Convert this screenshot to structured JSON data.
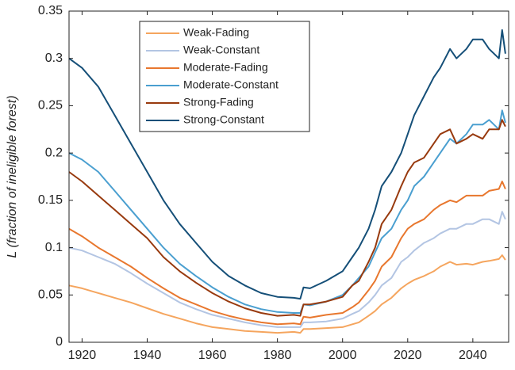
{
  "chart_data": {
    "type": "line",
    "ylabel": "L (fraction of ineligible forest)",
    "xlim": [
      1916,
      2051
    ],
    "xticks": [
      1920,
      1940,
      1960,
      1980,
      2000,
      2020,
      2040
    ],
    "ylim": [
      0,
      0.35
    ],
    "yticks": [
      0,
      0.05,
      0.1,
      0.15,
      0.2,
      0.25,
      0.3,
      0.35
    ],
    "grid": false,
    "legend": "upper-left",
    "x": [
      1916,
      1920,
      1925,
      1930,
      1935,
      1940,
      1945,
      1950,
      1955,
      1960,
      1965,
      1970,
      1975,
      1980,
      1985,
      1987,
      1988,
      1990,
      1995,
      2000,
      2003,
      2005,
      2008,
      2010,
      2012,
      2015,
      2018,
      2020,
      2022,
      2025,
      2028,
      2030,
      2033,
      2035,
      2038,
      2040,
      2043,
      2045,
      2048,
      2049,
      2050
    ],
    "series": [
      {
        "name": "Weak-Fading",
        "color": "#f5a55e",
        "values": [
          0.06,
          0.057,
          0.052,
          0.047,
          0.042,
          0.036,
          0.03,
          0.025,
          0.02,
          0.016,
          0.014,
          0.012,
          0.011,
          0.01,
          0.011,
          0.01,
          0.014,
          0.014,
          0.015,
          0.016,
          0.019,
          0.021,
          0.028,
          0.033,
          0.04,
          0.047,
          0.057,
          0.062,
          0.066,
          0.07,
          0.075,
          0.08,
          0.085,
          0.082,
          0.083,
          0.082,
          0.085,
          0.086,
          0.088,
          0.092,
          0.087
        ]
      },
      {
        "name": "Weak-Constant",
        "color": "#b3c5e3",
        "values": [
          0.1,
          0.097,
          0.09,
          0.083,
          0.073,
          0.062,
          0.052,
          0.042,
          0.035,
          0.029,
          0.025,
          0.021,
          0.018,
          0.016,
          0.016,
          0.016,
          0.021,
          0.021,
          0.022,
          0.025,
          0.03,
          0.033,
          0.042,
          0.05,
          0.06,
          0.068,
          0.085,
          0.09,
          0.097,
          0.105,
          0.11,
          0.115,
          0.12,
          0.12,
          0.125,
          0.125,
          0.13,
          0.13,
          0.125,
          0.138,
          0.13
        ]
      },
      {
        "name": "Moderate-Fading",
        "color": "#e8772e",
        "values": [
          0.12,
          0.112,
          0.1,
          0.09,
          0.08,
          0.068,
          0.057,
          0.047,
          0.04,
          0.033,
          0.028,
          0.024,
          0.021,
          0.019,
          0.02,
          0.019,
          0.027,
          0.026,
          0.029,
          0.031,
          0.037,
          0.042,
          0.055,
          0.065,
          0.08,
          0.09,
          0.11,
          0.12,
          0.125,
          0.13,
          0.14,
          0.145,
          0.15,
          0.148,
          0.155,
          0.155,
          0.155,
          0.16,
          0.162,
          0.17,
          0.162
        ]
      },
      {
        "name": "Moderate-Constant",
        "color": "#4a9fd0",
        "values": [
          0.2,
          0.193,
          0.18,
          0.16,
          0.14,
          0.12,
          0.1,
          0.083,
          0.07,
          0.058,
          0.048,
          0.04,
          0.035,
          0.032,
          0.031,
          0.031,
          0.04,
          0.039,
          0.043,
          0.05,
          0.06,
          0.068,
          0.08,
          0.095,
          0.11,
          0.12,
          0.14,
          0.15,
          0.165,
          0.175,
          0.19,
          0.2,
          0.215,
          0.21,
          0.22,
          0.23,
          0.23,
          0.235,
          0.225,
          0.245,
          0.232
        ]
      },
      {
        "name": "Strong-Fading",
        "color": "#983a0e",
        "values": [
          0.18,
          0.17,
          0.155,
          0.14,
          0.125,
          0.11,
          0.09,
          0.075,
          0.063,
          0.052,
          0.043,
          0.036,
          0.031,
          0.028,
          0.029,
          0.028,
          0.04,
          0.04,
          0.043,
          0.048,
          0.06,
          0.065,
          0.085,
          0.1,
          0.125,
          0.14,
          0.165,
          0.18,
          0.19,
          0.195,
          0.21,
          0.22,
          0.225,
          0.21,
          0.215,
          0.22,
          0.215,
          0.225,
          0.225,
          0.235,
          0.228
        ]
      },
      {
        "name": "Strong-Constant",
        "color": "#154f78",
        "values": [
          0.3,
          0.29,
          0.27,
          0.24,
          0.21,
          0.18,
          0.15,
          0.125,
          0.105,
          0.085,
          0.07,
          0.06,
          0.052,
          0.048,
          0.047,
          0.046,
          0.058,
          0.057,
          0.065,
          0.075,
          0.09,
          0.1,
          0.12,
          0.14,
          0.165,
          0.18,
          0.2,
          0.22,
          0.24,
          0.26,
          0.28,
          0.29,
          0.31,
          0.3,
          0.31,
          0.32,
          0.32,
          0.31,
          0.3,
          0.33,
          0.305
        ]
      }
    ]
  }
}
